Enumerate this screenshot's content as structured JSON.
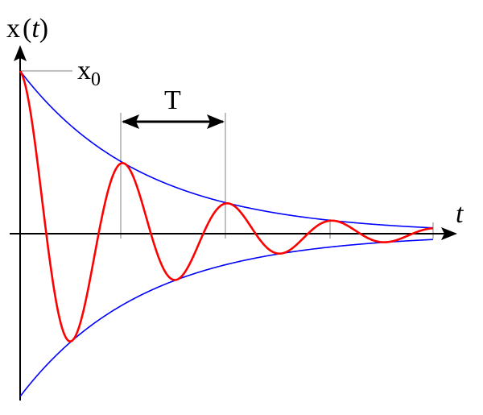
{
  "labels": {
    "y_axis_main": "x",
    "y_axis_open": "(",
    "y_axis_var": "t",
    "y_axis_close": ")",
    "initial_value_main": "x",
    "initial_value_sub": "0",
    "period": "T",
    "x_axis": "t"
  },
  "colors": {
    "oscillation": "#ff0000",
    "envelope": "#0000ff",
    "axes": "#000000",
    "guides": "#808080"
  }
}
